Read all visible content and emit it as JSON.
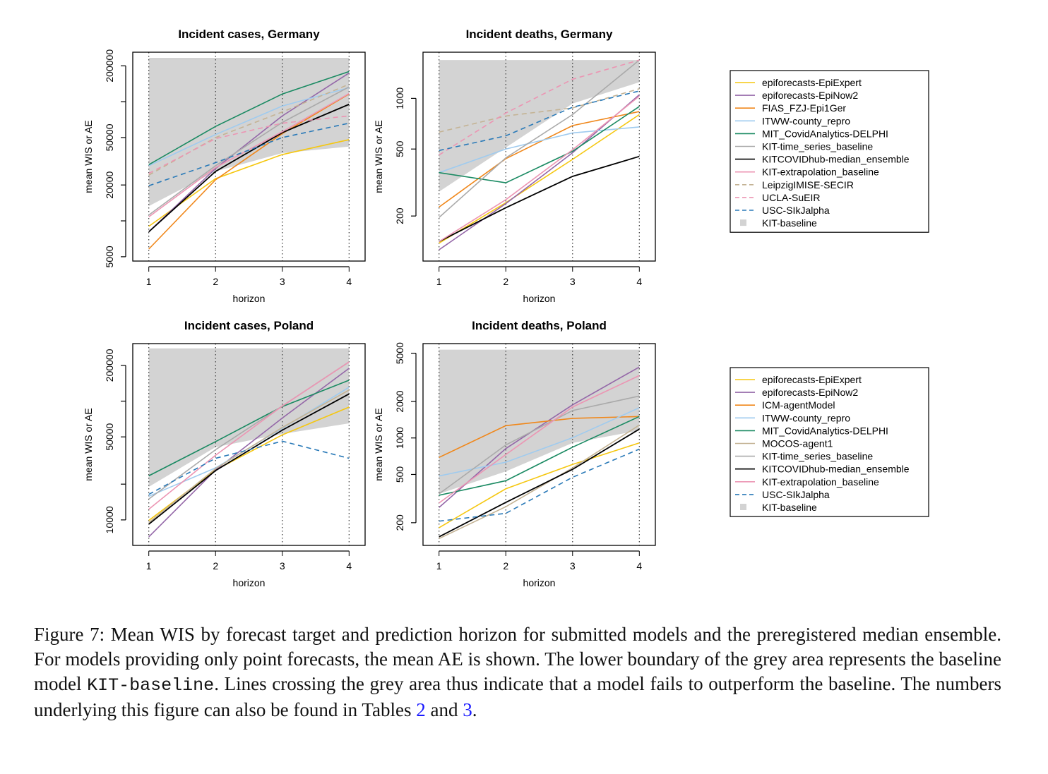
{
  "chart_data": [
    {
      "type": "line",
      "title": "Incident cases, Germany",
      "xlabel": "horizon",
      "ylabel": "mean WIS or AE",
      "yscale": "log",
      "x": [
        1,
        2,
        3,
        4
      ],
      "ylim": [
        4600,
        260000
      ],
      "yticks": [
        5000,
        10000,
        20000,
        50000,
        100000,
        200000
      ],
      "ytick_labels": [
        "5000",
        "",
        "20000",
        "50000",
        "",
        "200000"
      ],
      "vgrid": "dotted",
      "legend_group": "germany",
      "baseline": {
        "name": "KIT-baseline",
        "lower": [
          13300,
          26000,
          37000,
          42000
        ],
        "upper": 233000
      },
      "series": [
        {
          "name": "epiforecasts-EpiExpert",
          "values": [
            9000,
            22600,
            36000,
            48000
          ]
        },
        {
          "name": "epiforecasts-EpiNow2",
          "values": [
            8100,
            27500,
            76000,
            174000
          ]
        },
        {
          "name": "FIAS_FZJ-Epi1Ger",
          "values": [
            5800,
            22100,
            54000,
            116000
          ]
        },
        {
          "name": "ITWW-county_repro",
          "values": [
            29000,
            53000,
            92000,
            131000
          ]
        },
        {
          "name": "MIT_CovidAnalytics-DELPHI",
          "values": [
            29600,
            62000,
            116000,
            179000
          ]
        },
        {
          "name": "KIT-time_series_baseline",
          "values": [
            11200,
            29000,
            67000,
            133000
          ]
        },
        {
          "name": "KITCOVIDhub-median_ensemble",
          "values": [
            8100,
            26000,
            55000,
            95000
          ]
        },
        {
          "name": "KIT-extrapolation_baseline",
          "values": [
            10800,
            28000,
            56000,
            117000
          ]
        },
        {
          "name": "LeipzigIMISE-SECIR",
          "values": [
            24200,
            50000,
            82000,
            140000
          ]
        },
        {
          "name": "UCLA-SuEIR",
          "values": [
            25000,
            49000,
            66000,
            76000
          ]
        },
        {
          "name": "USC-SIkJalpha",
          "values": [
            19700,
            30800,
            50000,
            66000
          ]
        }
      ]
    },
    {
      "type": "line",
      "title": "Incident deaths, Germany",
      "xlabel": "horizon",
      "ylabel": "mean WIS or AE",
      "yscale": "log",
      "x": [
        1,
        2,
        3,
        4
      ],
      "ylim": [
        108,
        1880
      ],
      "yticks": [
        200,
        500,
        1000
      ],
      "ytick_labels": [
        "200",
        "500",
        "1000"
      ],
      "vgrid": "dotted",
      "legend_group": "germany",
      "baseline": {
        "name": "KIT-baseline",
        "lower": [
          279,
          510,
          932,
          1247
        ],
        "upper": 1688
      },
      "series": [
        {
          "name": "epiforecasts-EpiExpert",
          "values": [
            138,
            240,
            434,
            801
          ]
        },
        {
          "name": "epiforecasts-EpiNow2",
          "values": [
            126,
            237,
            475,
            1051
          ]
        },
        {
          "name": "FIAS_FZJ-Epi1Ger",
          "values": [
            226,
            438,
            689,
            835
          ]
        },
        {
          "name": "ITWW-county_repro",
          "values": [
            362,
            500,
            623,
            676
          ]
        },
        {
          "name": "MIT_CovidAnalytics-DELPHI",
          "values": [
            362,
            315,
            485,
            895
          ]
        },
        {
          "name": "KIT-time_series_baseline",
          "values": [
            196,
            443,
            801,
            1688
          ]
        },
        {
          "name": "KITCOVIDhub-median_ensemble",
          "values": [
            141,
            224,
            344,
            452
          ]
        },
        {
          "name": "KIT-extrapolation_baseline",
          "values": [
            141,
            250,
            495,
            1031
          ]
        },
        {
          "name": "LeipzigIMISE-SECIR",
          "values": [
            630,
            786,
            877,
            1140
          ]
        },
        {
          "name": "UCLA-SuEIR",
          "values": [
            461,
            818,
            1299,
            1688
          ]
        },
        {
          "name": "USC-SIkJalpha",
          "values": [
            490,
            599,
            886,
            1106
          ]
        }
      ]
    },
    {
      "type": "line",
      "title": "Incident cases, Poland",
      "xlabel": "horizon",
      "ylabel": "mean WIS or AE",
      "yscale": "log",
      "x": [
        1,
        2,
        3,
        4
      ],
      "ylim": [
        6100,
        305000
      ],
      "yticks": [
        10000,
        20000,
        50000,
        100000,
        200000
      ],
      "ytick_labels": [
        "10000",
        "",
        "50000",
        "",
        "200000"
      ],
      "vgrid": "dotted",
      "legend_group": "poland",
      "baseline": {
        "name": "KIT-baseline",
        "lower": [
          19000,
          41000,
          53000,
          65000
        ],
        "upper": 278000
      },
      "series": [
        {
          "name": "epiforecasts-EpiExpert",
          "values": [
            9900,
            26300,
            52000,
            89000
          ]
        },
        {
          "name": "epiforecasts-EpiNow2",
          "values": [
            7200,
            26300,
            72000,
            189000
          ]
        },
        {
          "name": "ITWW-county_repro",
          "values": [
            15800,
            27400,
            59000,
            131000
          ]
        },
        {
          "name": "MIT_CovidAnalytics-DELPHI",
          "values": [
            23500,
            45600,
            90000,
            150000
          ]
        },
        {
          "name": "MOCOS-agent1",
          "values": [
            9500,
            27000,
            60000,
            124000
          ]
        },
        {
          "name": "KIT-time_series_baseline",
          "values": [
            15000,
            39000,
            91000,
            214000
          ]
        },
        {
          "name": "KITCOVIDhub-median_ensemble",
          "values": [
            9200,
            26000,
            57000,
            115000
          ]
        },
        {
          "name": "KIT-extrapolation_baseline",
          "values": [
            12300,
            35000,
            91000,
            214000
          ]
        },
        {
          "name": "USC-SIkJalpha",
          "values": [
            16400,
            33000,
            46000,
            33000
          ]
        }
      ]
    },
    {
      "type": "line",
      "title": "Incident deaths, Poland",
      "xlabel": "horizon",
      "ylabel": "mean WIS or AE",
      "yscale": "log",
      "x": [
        1,
        2,
        3,
        4
      ],
      "ylim": [
        130,
        6000
      ],
      "yticks": [
        200,
        500,
        1000,
        2000,
        5000
      ],
      "ytick_labels": [
        "200",
        "500",
        "1000",
        "2000",
        "5000"
      ],
      "vgrid": "dotted",
      "legend_group": "poland",
      "baseline": {
        "name": "KIT-baseline",
        "lower": [
          346,
          530,
          910,
          1153
        ],
        "upper": 5341
      },
      "series": [
        {
          "name": "epiforecasts-EpiExpert",
          "values": [
            182,
            381,
            605,
            910
          ]
        },
        {
          "name": "epiforecasts-EpiNow2",
          "values": [
            267,
            817,
            1875,
            3848
          ]
        },
        {
          "name": "ICM-agentModel",
          "values": [
            691,
            1263,
            1451,
            1503
          ]
        },
        {
          "name": "ITWW-county_repro",
          "values": [
            486,
            631,
            1004,
            1774
          ]
        },
        {
          "name": "MIT_CovidAnalytics-DELPHI",
          "values": [
            337,
            444,
            839,
            1503
          ]
        },
        {
          "name": "MOCOS-agent1",
          "values": [
            148,
            271,
            566,
            1278
          ]
        },
        {
          "name": "KIT-time_series_baseline",
          "values": [
            346,
            875,
            1684,
            2217
          ]
        },
        {
          "name": "KITCOVIDhub-median_ensemble",
          "values": [
            153,
            294,
            551,
            1183
          ]
        },
        {
          "name": "KIT-extrapolation_baseline",
          "values": [
            291,
            730,
            1800,
            3272
          ]
        },
        {
          "name": "USC-SIkJalpha",
          "values": [
            206,
            239,
            474,
            809
          ]
        }
      ]
    }
  ],
  "styles": {
    "epiforecasts-EpiExpert": {
      "color": "#f5c710",
      "dash": false
    },
    "epiforecasts-EpiNow2": {
      "color": "#9467a8",
      "dash": false
    },
    "FIAS_FZJ-Epi1Ger": {
      "color": "#f0871a",
      "dash": false
    },
    "ICM-agentModel": {
      "color": "#f0871a",
      "dash": false
    },
    "ITWW-county_repro": {
      "color": "#9fcbef",
      "dash": false
    },
    "MIT_CovidAnalytics-DELPHI": {
      "color": "#1a8a62",
      "dash": false
    },
    "MOCOS-agent1": {
      "color": "#c4b394",
      "dash": false
    },
    "KIT-time_series_baseline": {
      "color": "#aaaaaa",
      "dash": false
    },
    "KITCOVIDhub-median_ensemble": {
      "color": "#000000",
      "dash": false
    },
    "KIT-extrapolation_baseline": {
      "color": "#ec95b3",
      "dash": false
    },
    "LeipzigIMISE-SECIR": {
      "color": "#c4b394",
      "dash": true
    },
    "UCLA-SuEIR": {
      "color": "#ec95b3",
      "dash": true
    },
    "USC-SIkJalpha": {
      "color": "#2a7ab8",
      "dash": true
    },
    "KIT-baseline": {
      "color": "#d3d3d3",
      "fill": true
    }
  },
  "legends": {
    "germany": [
      {
        "name": "epiforecasts-EpiExpert"
      },
      {
        "name": "epiforecasts-EpiNow2"
      },
      {
        "name": "FIAS_FZJ-Epi1Ger"
      },
      {
        "name": "ITWW-county_repro"
      },
      {
        "name": "MIT_CovidAnalytics-DELPHI"
      },
      {
        "name": "KIT-time_series_baseline"
      },
      {
        "name": "KITCOVIDhub-median_ensemble"
      },
      {
        "name": "KIT-extrapolation_baseline"
      },
      {
        "name": "LeipzigIMISE-SECIR"
      },
      {
        "name": "UCLA-SuEIR"
      },
      {
        "name": "USC-SIkJalpha"
      },
      {
        "name": "KIT-baseline"
      }
    ],
    "poland": [
      {
        "name": "epiforecasts-EpiExpert"
      },
      {
        "name": "epiforecasts-EpiNow2"
      },
      {
        "name": "ICM-agentModel"
      },
      {
        "name": "ITWW-county_repro"
      },
      {
        "name": "MIT_CovidAnalytics-DELPHI"
      },
      {
        "name": "MOCOS-agent1"
      },
      {
        "name": "KIT-time_series_baseline"
      },
      {
        "name": "KITCOVIDhub-median_ensemble"
      },
      {
        "name": "KIT-extrapolation_baseline"
      },
      {
        "name": "USC-SIkJalpha"
      },
      {
        "name": "KIT-baseline"
      }
    ]
  },
  "caption": {
    "label": "Figure 7:",
    "part1": "Mean WIS by forecast target and prediction horizon for submitted models and the preregistered median ensemble. For models providing only point forecasts, the mean AE is shown. The lower boundary of the grey area represents the baseline model",
    "code": "KIT-baseline",
    "part2": ". Lines crossing the grey area thus indicate that a model fails to outperform the baseline. The numbers underlying this figure can also be found in Tables",
    "ref1": "2",
    "part3": "and",
    "ref2": "3",
    "part4": "."
  }
}
